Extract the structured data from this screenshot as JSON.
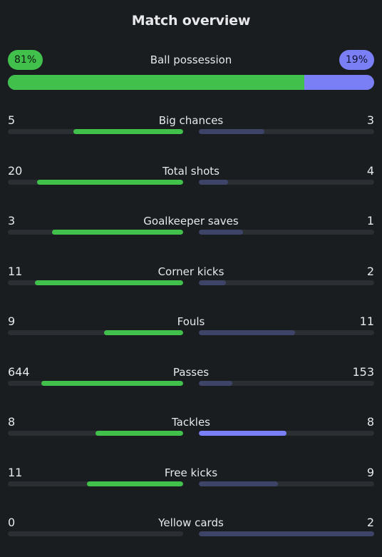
{
  "title": "Match overview",
  "colors": {
    "home": "#41c04c",
    "away": "#7b7ff5",
    "away_muted": "#3e4368",
    "track": "#2b2f33",
    "background": "#1a1d20"
  },
  "possession": {
    "label": "Ball possession",
    "home": 81,
    "away": 19,
    "home_label": "81%",
    "away_label": "19%"
  },
  "stats": [
    {
      "label": "Big chances",
      "home": "5",
      "away": "3",
      "home_fill": 0.625,
      "away_fill": 0.375
    },
    {
      "label": "Total shots",
      "home": "20",
      "away": "4",
      "home_fill": 0.833,
      "away_fill": 0.167
    },
    {
      "label": "Goalkeeper saves",
      "home": "3",
      "away": "1",
      "home_fill": 0.75,
      "away_fill": 0.25
    },
    {
      "label": "Corner kicks",
      "home": "11",
      "away": "2",
      "home_fill": 0.846,
      "away_fill": 0.154
    },
    {
      "label": "Fouls",
      "home": "9",
      "away": "11",
      "home_fill": 0.45,
      "away_fill": 0.55
    },
    {
      "label": "Passes",
      "home": "644",
      "away": "153",
      "home_fill": 0.808,
      "away_fill": 0.192
    },
    {
      "label": "Tackles",
      "home": "8",
      "away": "8",
      "home_fill": 0.5,
      "away_fill": 0.5,
      "away_highlight": true
    },
    {
      "label": "Free kicks",
      "home": "11",
      "away": "9",
      "home_fill": 0.55,
      "away_fill": 0.45
    },
    {
      "label": "Yellow cards",
      "home": "0",
      "away": "2",
      "home_fill": 0.0,
      "away_fill": 1.0
    }
  ]
}
